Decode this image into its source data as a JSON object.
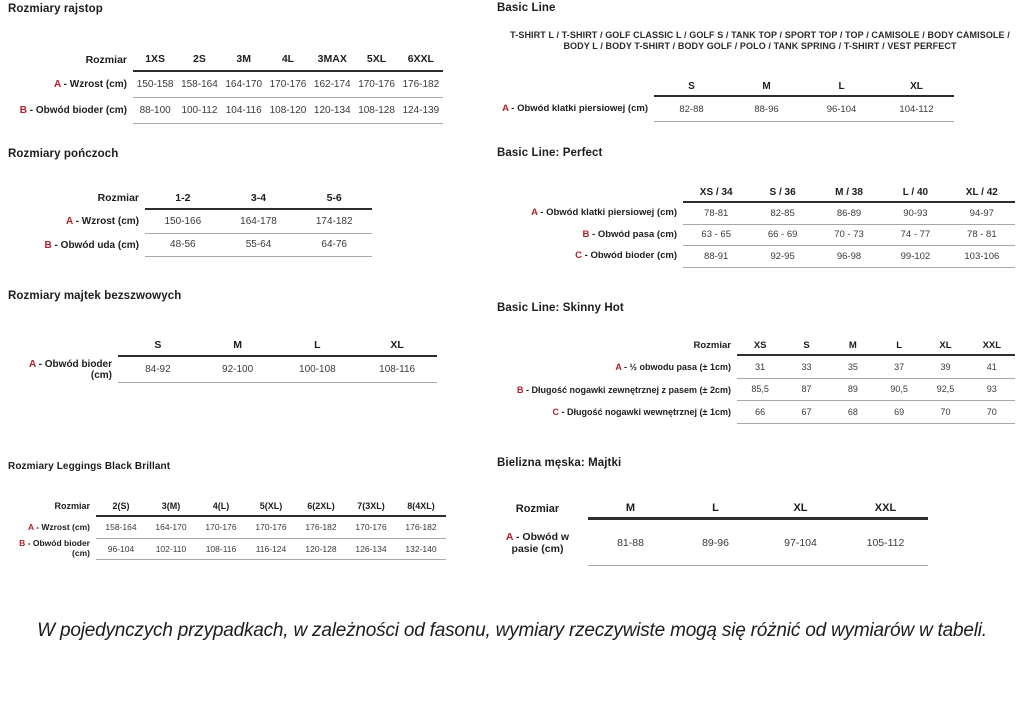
{
  "colors": {
    "accent_red": "#b22028",
    "text_dark": "#1d1d1b",
    "value_gray": "#3a3a3a"
  },
  "footer": {
    "note": "W pojedynczych przypadkach, w zależności od fasonu, wymiary rzeczywiste mogą się różnić od wymiarów w tabeli."
  },
  "sections": [
    {
      "title": "Rozmiary rajstop",
      "table": {
        "corner_label": "Rozmiar",
        "columns": [
          "1XS",
          "2S",
          "3M",
          "4L",
          "3MAX",
          "5XL",
          "6XXL"
        ],
        "rows": [
          {
            "letter": "A",
            "label": "Wzrost (cm)",
            "values": [
              "150-158",
              "158-164",
              "164-170",
              "170-176",
              "162-174",
              "170-176",
              "176-182"
            ]
          },
          {
            "letter": "B",
            "label": "Obwód bioder (cm)",
            "values": [
              "88-100",
              "100-112",
              "104-116",
              "108-120",
              "120-134",
              "108-128",
              "124-139"
            ]
          }
        ]
      }
    },
    {
      "title": "Rozmiary pończoch",
      "table": {
        "corner_label": "Rozmiar",
        "columns": [
          "1-2",
          "3-4",
          "5-6"
        ],
        "rows": [
          {
            "letter": "A",
            "label": "Wzrost (cm)",
            "values": [
              "150-166",
              "164-178",
              "174-182"
            ]
          },
          {
            "letter": "B",
            "label": "Obwód uda (cm)",
            "values": [
              "48-56",
              "55-64",
              "64-76"
            ]
          }
        ]
      }
    },
    {
      "title": "Rozmiary majtek bezszwowych",
      "table": {
        "corner_label": "",
        "columns": [
          "S",
          "M",
          "L",
          "XL"
        ],
        "rows": [
          {
            "letter": "A",
            "label": "Obwód bioder (cm)",
            "values": [
              "84-92",
              "92-100",
              "100-108",
              "108-116"
            ]
          }
        ]
      }
    },
    {
      "title": "Rozmiary Leggings Black Brillant",
      "table": {
        "corner_label": "Rozmiar",
        "columns": [
          "2(S)",
          "3(M)",
          "4(L)",
          "5(XL)",
          "6(2XL)",
          "7(3XL)",
          "8(4XL)"
        ],
        "rows": [
          {
            "letter": "A",
            "label": "Wzrost (cm)",
            "values": [
              "158-164",
              "164-170",
              "170-176",
              "170-176",
              "176-182",
              "170-176",
              "176-182"
            ]
          },
          {
            "letter": "B",
            "label": "Obwód bioder (cm)",
            "values": [
              "96-104",
              "102-110",
              "108-116",
              "116-124",
              "120-128",
              "126-134",
              "132-140"
            ]
          }
        ]
      }
    },
    {
      "title": "Basic Line",
      "subtitle": "T-SHIRT L / T-SHIRT / GOLF CLASSIC L / GOLF S / TANK TOP / SPORT TOP / TOP / CAMISOLE / BODY CAMISOLE / BODY L / BODY T-SHIRT / BODY GOLF / POLO / TANK SPRING / T-SHIRT / VEST PERFECT",
      "table": {
        "corner_label": "",
        "columns": [
          "S",
          "M",
          "L",
          "XL"
        ],
        "rows": [
          {
            "letter": "A",
            "label": "Obwód klatki piersiowej (cm)",
            "values": [
              "82-88",
              "88-96",
              "96-104",
              "104-112"
            ]
          }
        ]
      }
    },
    {
      "title": "Basic Line: Perfect",
      "table": {
        "corner_label": "",
        "columns": [
          "XS / 34",
          "S / 36",
          "M / 38",
          "L / 40",
          "XL / 42"
        ],
        "rows": [
          {
            "letter": "A",
            "label": "Obwód klatki piersiowej (cm)",
            "values": [
              "78-81",
              "82-85",
              "86-89",
              "90-93",
              "94-97"
            ]
          },
          {
            "letter": "B",
            "label": "Obwód pasa (cm)",
            "values": [
              "63 - 65",
              "66 - 69",
              "70 - 73",
              "74 - 77",
              "78 - 81"
            ]
          },
          {
            "letter": "C",
            "label": "Obwód bioder (cm)",
            "values": [
              "88-91",
              "92-95",
              "96-98",
              "99-102",
              "103-106"
            ]
          }
        ]
      }
    },
    {
      "title": "Basic Line: Skinny Hot",
      "table": {
        "corner_label": "Rozmiar",
        "columns": [
          "XS",
          "S",
          "M",
          "L",
          "XL",
          "XXL"
        ],
        "rows": [
          {
            "letter": "A",
            "label": "½ obwodu pasa (± 1cm)",
            "values": [
              "31",
              "33",
              "35",
              "37",
              "39",
              "41"
            ]
          },
          {
            "letter": "B",
            "label": "Długość nogawki zewnętrznej z pasem (± 2cm)",
            "values": [
              "85,5",
              "87",
              "89",
              "90,5",
              "92,5",
              "93"
            ]
          },
          {
            "letter": "C",
            "label": "Długość nogawki wewnętrznej (± 1cm)",
            "values": [
              "66",
              "67",
              "68",
              "69",
              "70",
              "70"
            ]
          }
        ]
      }
    },
    {
      "title": "Bielizna męska: Majtki",
      "table": {
        "corner_label": "Rozmiar",
        "columns": [
          "M",
          "L",
          "XL",
          "XXL"
        ],
        "rows": [
          {
            "letter": "A",
            "label": "Obwód w pasie (cm)",
            "values": [
              "81-88",
              "89-96",
              "97-104",
              "105-112"
            ]
          }
        ]
      }
    }
  ]
}
